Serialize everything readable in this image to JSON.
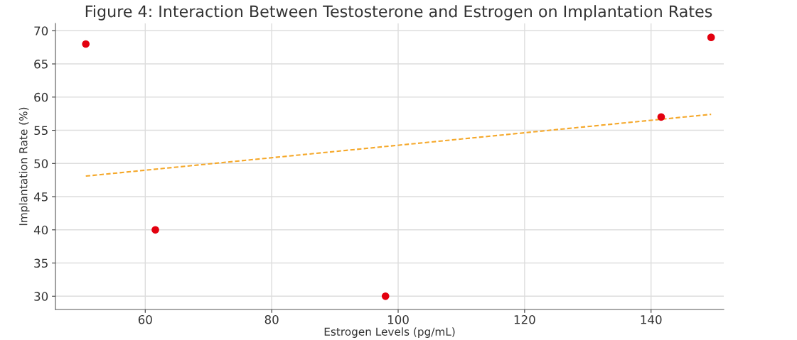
{
  "chart_data": {
    "type": "scatter",
    "title": "Figure 4: Interaction Between Testosterone and Estrogen on Implantation Rates",
    "xlabel": "Estrogen Levels (pg/mL)",
    "ylabel": "Implantation Rate (%)",
    "x": [
      50.6,
      61.6,
      98,
      141.6,
      149.5
    ],
    "series": [
      {
        "color": "#e3000f",
        "values": [
          68,
          40,
          30,
          57,
          69
        ],
        "marker": "circle"
      },
      {
        "type": "line",
        "color": "#f5a82a",
        "x": [
          50.6,
          149.5
        ],
        "values": [
          48.1,
          57.4
        ],
        "line_style": "dashed",
        "marker": "none"
      }
    ],
    "xlim": [
      45.8,
      151.5
    ],
    "ylim": [
      28,
      71.1
    ],
    "xticks": [
      60,
      80,
      100,
      120,
      140
    ],
    "yticks": [
      30,
      35,
      40,
      45,
      50,
      55,
      60,
      65,
      70
    ],
    "grid": true,
    "legend": false
  }
}
